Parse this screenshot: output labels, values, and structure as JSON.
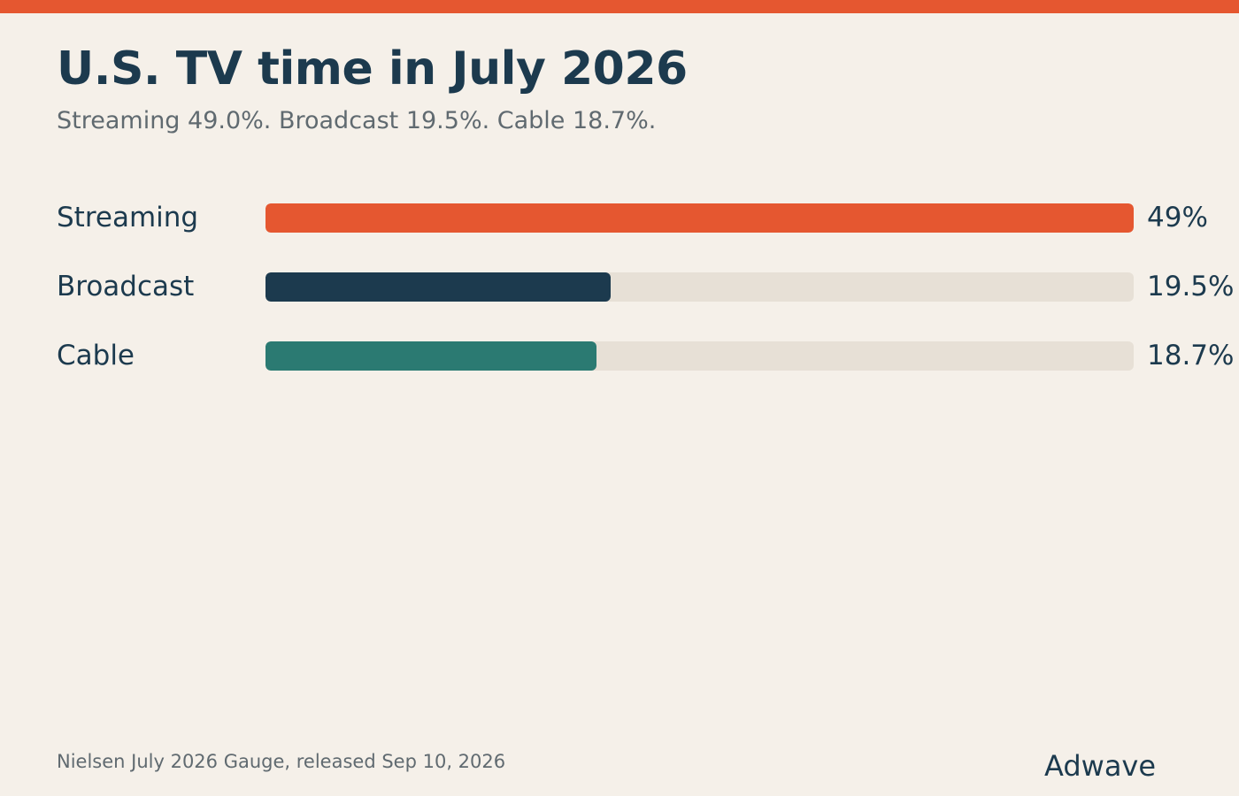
{
  "header": {
    "title": "U.S. TV time in July 2026",
    "subtitle": "Streaming 49.0%. Broadcast 19.5%. Cable 18.7%."
  },
  "chart_data": {
    "type": "bar",
    "orientation": "horizontal",
    "categories": [
      "Streaming",
      "Broadcast",
      "Cable"
    ],
    "values": [
      49.0,
      19.5,
      18.7
    ],
    "value_labels": [
      "49%",
      "19.5%",
      "18.7%"
    ],
    "xlim": [
      0,
      49
    ],
    "unit": "%",
    "colors": [
      "#e55730",
      "#1c3a4e",
      "#2b7a72"
    ],
    "track_color": "#e7e0d6",
    "grid": false,
    "legend": "none"
  },
  "footer": {
    "source": "Nielsen July 2026 Gauge, released Sep 10, 2026",
    "brand": "Adwave"
  },
  "theme": {
    "background": "#f5f0e9",
    "accent": "#e55730",
    "text": "#1c3a4e",
    "muted": "#606a70"
  }
}
